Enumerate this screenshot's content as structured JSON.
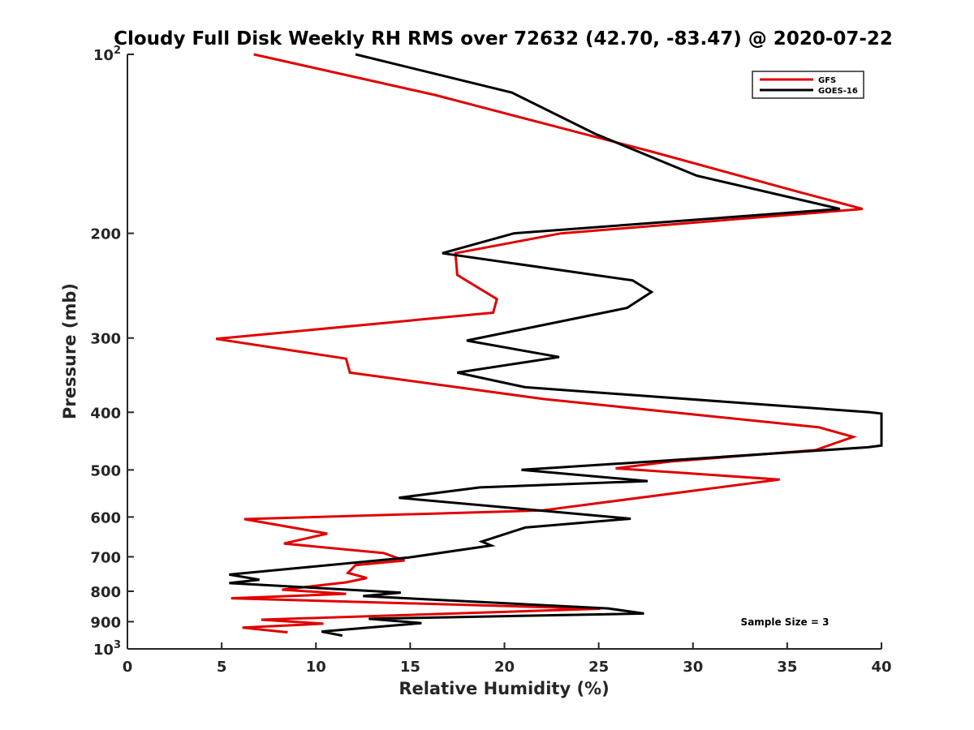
{
  "chart_data": {
    "type": "line",
    "title": "Cloudy Full Disk Weekly RH RMS over 72632 (42.70, -83.47) @ 2020-07-22",
    "xlabel": "Relative Humidity (%)",
    "ylabel": "Pressure (mb)",
    "xlim": [
      0,
      40
    ],
    "ylim": [
      100,
      1000
    ],
    "y_scale": "log",
    "y_reversed": true,
    "x_ticks": [
      "0",
      "5",
      "10",
      "15",
      "20",
      "25",
      "30",
      "35",
      "40"
    ],
    "y_ticks": [
      {
        "value": 100,
        "base": "10",
        "exp": "2"
      },
      {
        "value": 200,
        "label": "200"
      },
      {
        "value": 300,
        "label": "300"
      },
      {
        "value": 400,
        "label": "400"
      },
      {
        "value": 500,
        "label": "500"
      },
      {
        "value": 600,
        "label": "600"
      },
      {
        "value": 700,
        "label": "700"
      },
      {
        "value": 800,
        "label": "800"
      },
      {
        "value": 900,
        "label": "900"
      },
      {
        "value": 1000,
        "base": "10",
        "exp": "3"
      }
    ],
    "grid": false,
    "legend_position": "top-right",
    "annotation": "Sample Size = 3",
    "series": [
      {
        "name": "GFS",
        "color": "#e00000",
        "points": [
          [
            6.7,
            100
          ],
          [
            16.3,
            117
          ],
          [
            27.9,
            146
          ],
          [
            35.5,
            170
          ],
          [
            39.0,
            182
          ],
          [
            23.0,
            200
          ],
          [
            17.4,
            216
          ],
          [
            17.5,
            235
          ],
          [
            19.6,
            258
          ],
          [
            19.4,
            272
          ],
          [
            4.7,
            301
          ],
          [
            11.6,
            325
          ],
          [
            11.8,
            343
          ],
          [
            22.1,
            380
          ],
          [
            36.7,
            424
          ],
          [
            38.5,
            440
          ],
          [
            36.5,
            463
          ],
          [
            28.8,
            484
          ],
          [
            25.9,
            497
          ],
          [
            34.6,
            519
          ],
          [
            22.0,
            585
          ],
          [
            6.2,
            605
          ],
          [
            10.6,
            640
          ],
          [
            8.3,
            665
          ],
          [
            13.6,
            690
          ],
          [
            14.7,
            710
          ],
          [
            12.1,
            723
          ],
          [
            11.7,
            745
          ],
          [
            12.7,
            760
          ],
          [
            11.6,
            773
          ],
          [
            8.2,
            795
          ],
          [
            11.6,
            808
          ],
          [
            5.5,
            822
          ],
          [
            25.1,
            856
          ],
          [
            7.1,
            893
          ],
          [
            10.4,
            907
          ],
          [
            6.1,
            921
          ],
          [
            8.5,
            938
          ]
        ]
      },
      {
        "name": "GOES-16",
        "color": "#000000",
        "points": [
          [
            12.1,
            100
          ],
          [
            20.4,
            116
          ],
          [
            24.8,
            136
          ],
          [
            30.2,
            160
          ],
          [
            37.8,
            182
          ],
          [
            20.5,
            200
          ],
          [
            16.7,
            216
          ],
          [
            26.8,
            240
          ],
          [
            27.8,
            251
          ],
          [
            26.5,
            267
          ],
          [
            18.0,
            303
          ],
          [
            22.9,
            323
          ],
          [
            17.5,
            343
          ],
          [
            21.1,
            363
          ],
          [
            39.4,
            400
          ],
          [
            40.0,
            402
          ],
          [
            40.0,
            455
          ],
          [
            39.3,
            458
          ],
          [
            27.8,
            484
          ],
          [
            20.9,
            500
          ],
          [
            27.6,
            522
          ],
          [
            18.7,
            535
          ],
          [
            14.4,
            557
          ],
          [
            26.7,
            604
          ],
          [
            21.1,
            625
          ],
          [
            18.8,
            660
          ],
          [
            19.3,
            670
          ],
          [
            14.9,
            702
          ],
          [
            9.3,
            730
          ],
          [
            5.4,
            750
          ],
          [
            7.0,
            765
          ],
          [
            5.4,
            775
          ],
          [
            14.5,
            804
          ],
          [
            12.5,
            815
          ],
          [
            25.5,
            855
          ],
          [
            27.4,
            872
          ],
          [
            12.8,
            890
          ],
          [
            15.6,
            905
          ],
          [
            10.3,
            935
          ],
          [
            11.4,
            950
          ]
        ]
      }
    ]
  }
}
